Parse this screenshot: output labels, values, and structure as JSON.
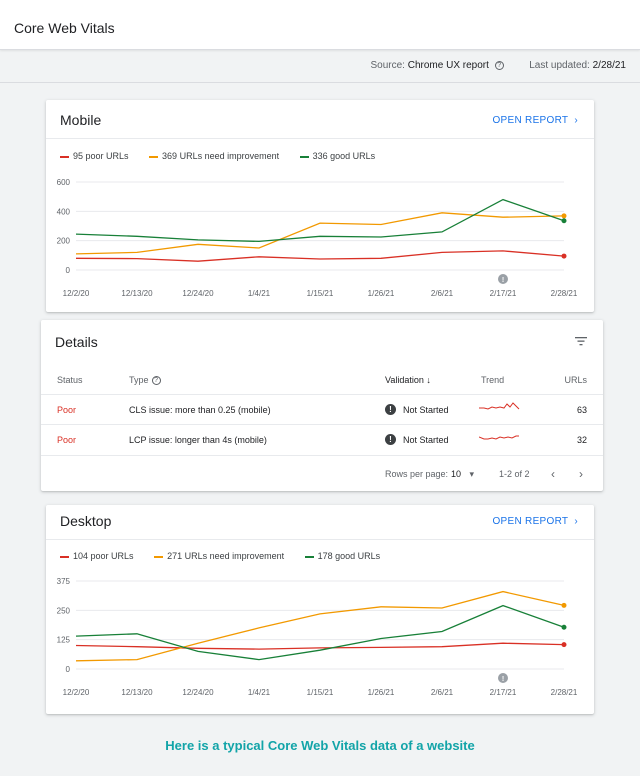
{
  "header": {
    "title": "Core Web Vitals"
  },
  "source": {
    "label": "Source:",
    "value": "Chrome UX report",
    "updated_label": "Last updated:",
    "updated_value": "2/28/21"
  },
  "mobile": {
    "title": "Mobile",
    "open_report": "OPEN REPORT",
    "legend": [
      {
        "text": "95 poor URLs",
        "color": "#d93025"
      },
      {
        "text": "369 URLs need improvement",
        "color": "#f29900"
      },
      {
        "text": "336 good URLs",
        "color": "#188038"
      }
    ],
    "chart_data": {
      "type": "line",
      "title": "",
      "x": [
        "12/2/20",
        "12/13/20",
        "12/24/20",
        "1/4/21",
        "1/15/21",
        "1/26/21",
        "2/6/21",
        "2/17/21",
        "2/28/21"
      ],
      "x_ticks": [
        "12/2/20",
        "12/13/20",
        "12/24/20",
        "1/4/21",
        "1/15/21",
        "1/26/21",
        "2/6/21",
        "2/17/21",
        "2/28/21"
      ],
      "y_ticks": [
        0,
        200,
        400,
        600
      ],
      "ylim": [
        0,
        600
      ],
      "annotation_at": "2/17/21",
      "series": [
        {
          "name": "95 poor URLs",
          "color": "#d93025",
          "values": [
            80,
            78,
            60,
            90,
            75,
            80,
            120,
            130,
            95
          ]
        },
        {
          "name": "369 URLs need improvement",
          "color": "#f29900",
          "values": [
            110,
            120,
            175,
            150,
            320,
            310,
            390,
            360,
            369
          ]
        },
        {
          "name": "336 good URLs",
          "color": "#188038",
          "values": [
            245,
            230,
            205,
            195,
            230,
            225,
            260,
            480,
            336
          ]
        }
      ]
    }
  },
  "details": {
    "title": "Details",
    "columns": {
      "status": "Status",
      "type": "Type",
      "validation": "Validation",
      "trend": "Trend",
      "urls": "URLs"
    },
    "rows": [
      {
        "status": "Poor",
        "type": "CLS issue: more than 0.25 (mobile)",
        "validation": "Not Started",
        "urls": "63"
      },
      {
        "status": "Poor",
        "type": "LCP issue: longer than 4s (mobile)",
        "validation": "Not Started",
        "urls": "32"
      }
    ],
    "pager": {
      "rows_label": "Rows per page:",
      "rows_value": "10",
      "range": "1-2 of 2"
    }
  },
  "desktop": {
    "title": "Desktop",
    "open_report": "OPEN REPORT",
    "legend": [
      {
        "text": "104 poor URLs",
        "color": "#d93025"
      },
      {
        "text": "271 URLs need improvement",
        "color": "#f29900"
      },
      {
        "text": "178 good URLs",
        "color": "#188038"
      }
    ],
    "chart_data": {
      "type": "line",
      "title": "",
      "x": [
        "12/2/20",
        "12/13/20",
        "12/24/20",
        "1/4/21",
        "1/15/21",
        "1/26/21",
        "2/6/21",
        "2/17/21",
        "2/28/21"
      ],
      "x_ticks": [
        "12/2/20",
        "12/13/20",
        "12/24/20",
        "1/4/21",
        "1/15/21",
        "1/26/21",
        "2/6/21",
        "2/17/21",
        "2/28/21"
      ],
      "y_ticks": [
        0,
        125,
        250,
        375
      ],
      "ylim": [
        0,
        375
      ],
      "annotation_at": "2/17/21",
      "series": [
        {
          "name": "104 poor URLs",
          "color": "#d93025",
          "values": [
            100,
            95,
            88,
            85,
            90,
            92,
            95,
            110,
            104
          ]
        },
        {
          "name": "271 URLs need improvement",
          "color": "#f29900",
          "values": [
            35,
            40,
            110,
            175,
            235,
            265,
            260,
            330,
            271
          ]
        },
        {
          "name": "178 good URLs",
          "color": "#188038",
          "values": [
            140,
            150,
            75,
            40,
            80,
            130,
            160,
            270,
            178
          ]
        }
      ]
    }
  },
  "caption": "Here is a typical Core Web Vitals data of a website"
}
